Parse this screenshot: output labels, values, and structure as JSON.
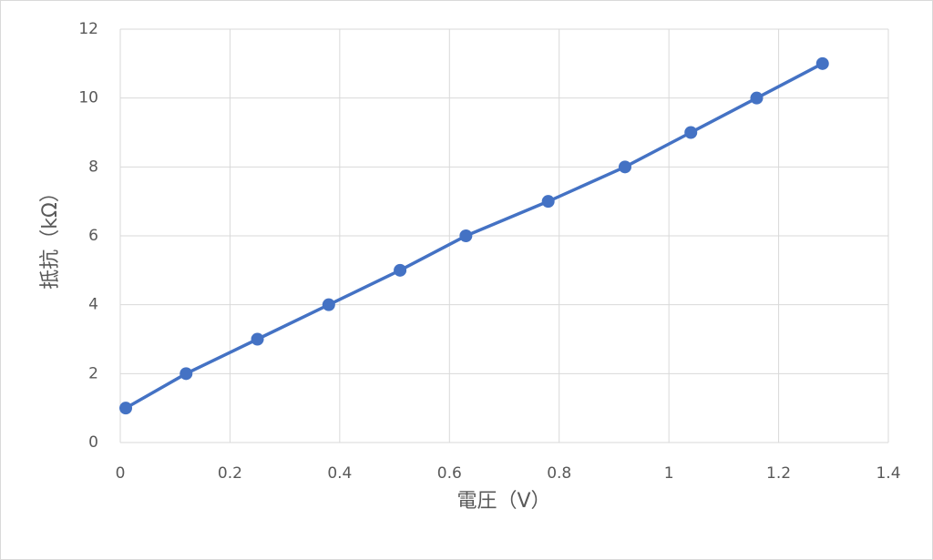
{
  "chart_data": {
    "type": "line",
    "x_label": "電圧（V）",
    "y_label": "抵抗（kΩ）",
    "x": [
      0.01,
      0.12,
      0.25,
      0.38,
      0.51,
      0.63,
      0.78,
      0.92,
      1.04,
      1.16,
      1.28
    ],
    "series": [
      {
        "color": "#4472c4",
        "values": [
          1,
          2,
          3,
          4,
          5,
          6,
          7,
          8,
          9,
          10,
          11
        ]
      }
    ],
    "xlim": [
      0,
      1.4
    ],
    "xticks": [
      0,
      0.2,
      0.4,
      0.6,
      0.8,
      1,
      1.2,
      1.4
    ],
    "ylim": [
      0,
      12
    ],
    "yticks": [
      0,
      2,
      4,
      6,
      8,
      10,
      12
    ],
    "grid": true,
    "markers": true
  }
}
